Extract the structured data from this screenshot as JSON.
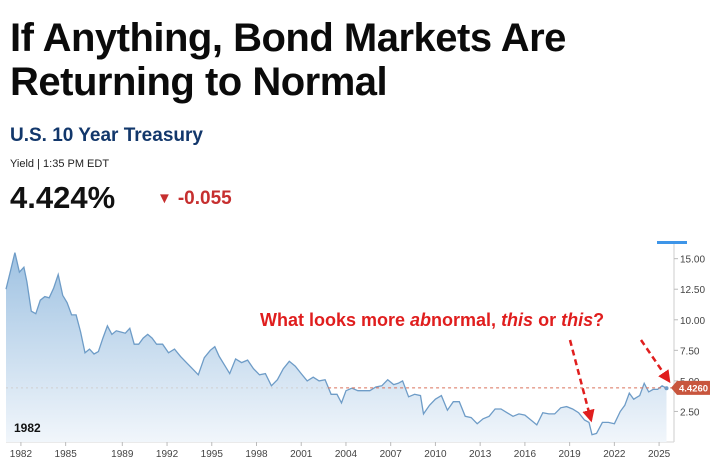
{
  "headline": "If Anything, Bond Markets Are Returning to Normal",
  "quote": {
    "name": "U.S. 10 Year Treasury",
    "meta": "Yield | 1:35 PM EDT",
    "price": "4.424%",
    "change": "-0.055",
    "change_icon": "down-triangle-icon"
  },
  "colors": {
    "line": "#6e9cc7",
    "fill_top": "#9fc2e2",
    "fill_bottom": "#f1f6fb",
    "reference": "#d9725b",
    "price_tag": "#c8553d",
    "annotation": "#e01e1e",
    "accent_bar": "#3e95e8",
    "down": "#c62f2f"
  },
  "chart_data": {
    "type": "area",
    "title": "",
    "xlabel": "",
    "ylabel": "",
    "xlim": [
      1981,
      2025.8
    ],
    "ylim": [
      0,
      16.2
    ],
    "x_ticks": [
      "1982",
      "1985",
      "1989",
      "1992",
      "1995",
      "1998",
      "2001",
      "2004",
      "2007",
      "2010",
      "2013",
      "2016",
      "2019",
      "2022",
      "2025"
    ],
    "x_tick_values": [
      1982,
      1985,
      1988.8,
      1991.8,
      1994.8,
      1997.8,
      2000.8,
      2003.8,
      2006.8,
      2009.8,
      2012.8,
      2015.8,
      2018.8,
      2021.8,
      2024.8
    ],
    "y_ticks": [
      "15.00",
      "12.50",
      "10.00",
      "7.50",
      "5.00",
      "2.50"
    ],
    "y_tick_values": [
      15,
      12.5,
      10,
      7.5,
      5,
      2.5
    ],
    "grid": false,
    "reference_line": {
      "y": 4.426,
      "from_x": 2002.6
    },
    "last_value_label": "4.4260",
    "period_label": "1982",
    "annotation": {
      "text_start": "What looks more ",
      "text_ab": "ab",
      "text_mid": "normal, ",
      "text_this": "this",
      "text_or": " or ",
      "text_this2": "this",
      "text_end": "?"
    },
    "series": [
      {
        "x": [
          1981.0,
          1981.3,
          1981.6,
          1981.9,
          1982.2,
          1982.4,
          1982.7,
          1983.0,
          1983.3,
          1983.6,
          1983.9,
          1984.2,
          1984.5,
          1984.8,
          1985.1,
          1985.4,
          1985.7,
          1986.0,
          1986.3,
          1986.6,
          1986.9,
          1987.2,
          1987.5,
          1987.8,
          1988.1,
          1988.4,
          1988.7,
          1989.0,
          1989.3,
          1989.6,
          1989.9,
          1990.2,
          1990.5,
          1990.8,
          1991.1,
          1991.5,
          1991.9,
          1992.3,
          1992.7,
          1993.1,
          1993.5,
          1993.9,
          1994.3,
          1994.7,
          1995.0,
          1995.3,
          1995.7,
          1996.0,
          1996.4,
          1996.8,
          1997.2,
          1997.6,
          1998.0,
          1998.4,
          1998.8,
          1999.2,
          1999.6,
          2000.0,
          2000.4,
          2000.8,
          2001.2,
          2001.6,
          2002.0,
          2002.4,
          2002.8,
          2003.2,
          2003.5,
          2003.8,
          2004.2,
          2004.6,
          2005.0,
          2005.4,
          2005.8,
          2006.2,
          2006.6,
          2007.0,
          2007.3,
          2007.6,
          2008.0,
          2008.4,
          2008.8,
          2009.0,
          2009.4,
          2009.8,
          2010.2,
          2010.6,
          2011.0,
          2011.4,
          2011.8,
          2012.2,
          2012.6,
          2013.0,
          2013.4,
          2013.8,
          2014.2,
          2014.6,
          2015.0,
          2015.4,
          2015.8,
          2016.2,
          2016.6,
          2017.0,
          2017.4,
          2017.8,
          2018.2,
          2018.6,
          2019.0,
          2019.4,
          2019.8,
          2020.1,
          2020.3,
          2020.6,
          2021.0,
          2021.4,
          2021.8,
          2022.2,
          2022.5,
          2022.8,
          2023.1,
          2023.5,
          2023.8,
          2024.1,
          2024.4,
          2024.7,
          2025.0,
          2025.3
        ],
        "y": [
          12.5,
          14.0,
          15.5,
          13.9,
          14.3,
          13.1,
          10.7,
          10.5,
          11.6,
          11.9,
          11.8,
          12.6,
          13.7,
          12.0,
          11.4,
          10.4,
          10.4,
          9.0,
          7.3,
          7.6,
          7.2,
          7.4,
          8.5,
          9.5,
          8.8,
          9.1,
          9.0,
          8.9,
          9.3,
          8.0,
          8.0,
          8.5,
          8.8,
          8.5,
          8.0,
          8.0,
          7.3,
          7.6,
          7.0,
          6.5,
          6.0,
          5.5,
          6.9,
          7.5,
          7.8,
          7.0,
          6.2,
          5.6,
          6.8,
          6.5,
          6.7,
          6.0,
          5.5,
          5.6,
          4.6,
          5.1,
          6.0,
          6.6,
          6.2,
          5.6,
          5.0,
          5.3,
          5.0,
          5.1,
          3.9,
          3.9,
          3.2,
          4.2,
          4.4,
          4.2,
          4.2,
          4.2,
          4.5,
          4.6,
          5.1,
          4.7,
          4.8,
          5.0,
          3.7,
          3.9,
          3.8,
          2.3,
          3.0,
          3.5,
          3.8,
          2.6,
          3.3,
          3.3,
          2.1,
          2.0,
          1.5,
          1.9,
          2.1,
          2.7,
          2.7,
          2.4,
          2.1,
          2.3,
          2.2,
          1.8,
          1.4,
          2.4,
          2.3,
          2.3,
          2.8,
          2.9,
          2.7,
          2.4,
          1.8,
          1.6,
          0.6,
          0.7,
          1.6,
          1.6,
          1.5,
          2.5,
          3.0,
          4.0,
          3.5,
          3.8,
          4.8,
          4.1,
          4.3,
          4.3,
          4.6,
          4.4
        ]
      }
    ]
  }
}
